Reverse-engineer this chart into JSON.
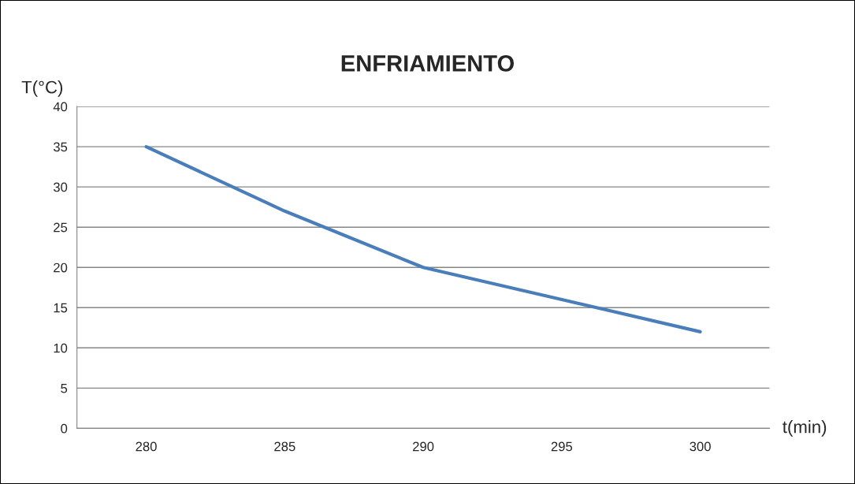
{
  "chart_data": {
    "type": "line",
    "title": "ENFRIAMIENTO",
    "xlabel": "t(min)",
    "ylabel": "T(°C)",
    "categories": [
      "280",
      "285",
      "290",
      "295",
      "300"
    ],
    "series": [
      {
        "color": "#4a7ebb",
        "values": [
          35,
          27,
          20,
          16,
          12
        ]
      }
    ],
    "ylim": [
      0,
      40
    ],
    "yticks": [
      0,
      5,
      10,
      15,
      20,
      25,
      30,
      35,
      40
    ],
    "grid": "y",
    "legend": false,
    "marker": "none",
    "line_style": "solid"
  }
}
